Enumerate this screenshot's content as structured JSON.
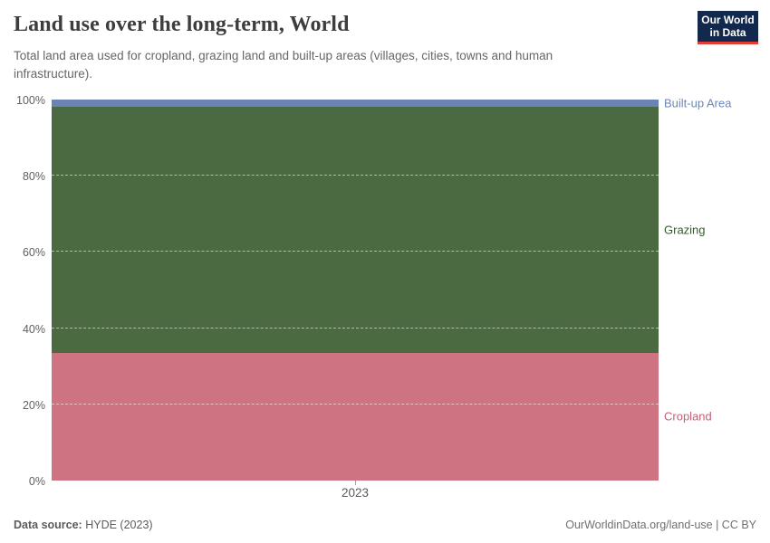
{
  "header": {
    "title": "Land use over the long-term, World",
    "subtitle": "Total land area used for cropland, grazing land and built-up areas (villages, cities, towns and human infrastructure).",
    "logo": {
      "line1": "Our World",
      "line2": "in Data",
      "bg_color": "#12294d",
      "accent_color": "#e23d33",
      "text_color": "#ffffff"
    }
  },
  "chart_data": {
    "type": "area",
    "stacked": true,
    "percent_mode": true,
    "x": [
      "2023"
    ],
    "series": [
      {
        "name": "Built-up Area",
        "values": [
          2.0
        ],
        "color": "#6c83b5",
        "label_color": "#6d87b9"
      },
      {
        "name": "Grazing",
        "values": [
          64.5
        ],
        "color": "#4c6a41",
        "label_color": "#355a2c"
      },
      {
        "name": "Cropland",
        "values": [
          33.5
        ],
        "color": "#ce7381",
        "label_color": "#c4617a"
      }
    ],
    "title": "Land use over the long-term, World",
    "xlabel": "",
    "ylabel": "",
    "ylim": [
      0,
      100
    ],
    "yticks": [
      {
        "value": 0,
        "label": "0%"
      },
      {
        "value": 20,
        "label": "20%"
      },
      {
        "value": 40,
        "label": "40%"
      },
      {
        "value": 60,
        "label": "60%"
      },
      {
        "value": 80,
        "label": "80%"
      },
      {
        "value": 100,
        "label": "100%"
      }
    ],
    "xticks": [
      "2023"
    ],
    "grid": true,
    "gridline_style": "dashed",
    "legend_position": "right-inline"
  },
  "footer": {
    "source_label": "Data source:",
    "source_value": "HYDE (2023)",
    "citation": "OurWorldinData.org/land-use | CC BY"
  }
}
